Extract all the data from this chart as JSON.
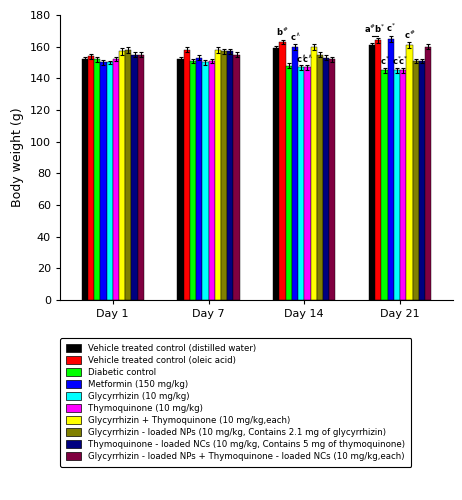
{
  "title": "",
  "ylabel": "Body weight (g)",
  "xlabels": [
    "Day 1",
    "Day 7",
    "Day 14",
    "Day 21"
  ],
  "ylim": [
    0,
    180
  ],
  "yticks": [
    0,
    20,
    40,
    60,
    80,
    100,
    120,
    140,
    160,
    180
  ],
  "groups": [
    "Vehicle treated control (distilled water)",
    "Vehicle treated control (oleic acid)",
    "Diabetic control",
    "Metformin (150 mg/kg)",
    "Glycyrrhizin (10 mg/kg)",
    "Thymoquinone (10 mg/kg)",
    "Glycyrrhizin + Thymoquinone (10 mg/kg,each)",
    "Glycyrrhizin - loaded NPs (10 mg/kg, Contains 2.1 mg of glycyrrhizin)",
    "Thymoquinone - loaded NCs (10 mg/kg, Contains 5 mg of thymoquinone)",
    "Glycyrrhizin - loaded NPs + Thymoquinone - loaded NCs (10 mg/kg,each)"
  ],
  "colors": [
    "#000000",
    "#ff0000",
    "#00ff00",
    "#0000ff",
    "#00ffff",
    "#ff00ff",
    "#ffff00",
    "#808000",
    "#000080",
    "#800040"
  ],
  "values": [
    [
      152,
      154,
      152,
      150,
      150,
      152,
      157,
      158,
      155,
      155
    ],
    [
      152,
      158,
      151,
      153,
      150,
      151,
      158,
      157,
      157,
      155
    ],
    [
      159,
      163,
      148,
      160,
      147,
      147,
      160,
      155,
      153,
      152
    ],
    [
      161,
      164,
      145,
      165,
      145,
      145,
      161,
      151,
      151,
      160
    ]
  ],
  "errors": [
    [
      1.5,
      1.5,
      1.5,
      1.5,
      1.2,
      1.2,
      2.0,
      2.0,
      1.5,
      1.5
    ],
    [
      1.5,
      1.5,
      1.5,
      1.5,
      1.5,
      1.5,
      2.0,
      1.5,
      1.5,
      1.5
    ],
    [
      1.5,
      1.5,
      1.5,
      2.0,
      1.5,
      1.5,
      2.0,
      1.5,
      1.5,
      1.5
    ],
    [
      1.5,
      1.5,
      1.5,
      2.0,
      1.5,
      1.5,
      2.0,
      1.5,
      1.5,
      1.5
    ]
  ],
  "figsize": [
    4.62,
    5.0
  ],
  "dpi": 100,
  "bar_width": 0.065,
  "group_positions": [
    1.0,
    2.0,
    3.0,
    4.0
  ],
  "xlim": [
    0.45,
    4.55
  ],
  "legend_fontsize": 6.2,
  "axis_fontsize": 9,
  "tick_fontsize": 8
}
